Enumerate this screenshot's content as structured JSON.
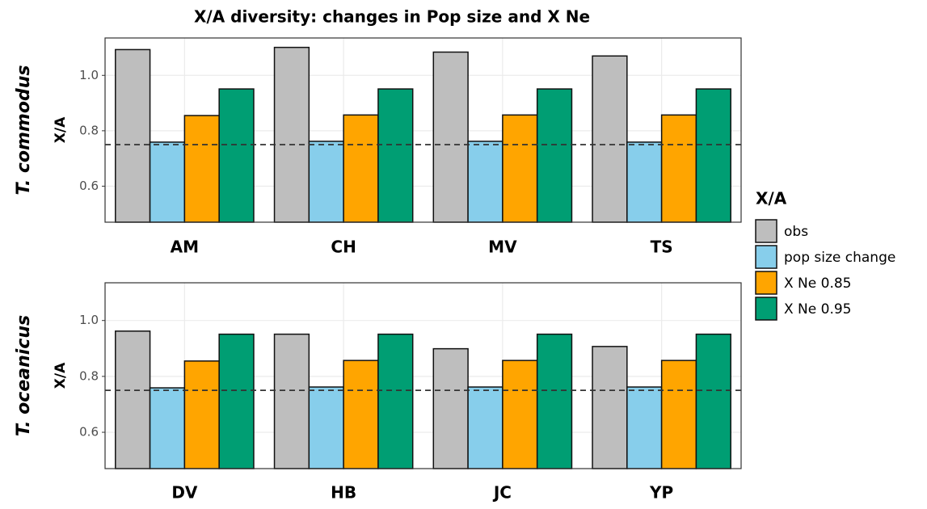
{
  "chart_data": {
    "type": "bar",
    "title": "X/A diversity: changes in Pop size and X Ne",
    "legend_title": "X/A",
    "ylabel": "X/A",
    "ylim": [
      0.47,
      1.135
    ],
    "yticks": [
      0.6,
      0.8,
      {
        "value": 1,
        "label": "1.0"
      }
    ],
    "hline": 0.75,
    "grid": true,
    "series": [
      {
        "name": "obs",
        "color": "#bebebe"
      },
      {
        "name": "pop size change",
        "color": "#87ceeb"
      },
      {
        "name": "X Ne 0.85",
        "color": "#ffa500"
      },
      {
        "name": "X Ne 0.95",
        "color": "#009e73"
      }
    ],
    "panels": [
      {
        "label": "T. commodus",
        "categories": [
          "AM",
          "CH",
          "MV",
          "TS"
        ],
        "values": [
          [
            1.093,
            1.101,
            1.084,
            1.07
          ],
          [
            0.759,
            0.762,
            0.762,
            0.759
          ],
          [
            0.855,
            0.857,
            0.857,
            0.857
          ],
          [
            0.951,
            0.951,
            0.951,
            0.951
          ]
        ]
      },
      {
        "label": "T. oceanicus",
        "categories": [
          "DV",
          "HB",
          "JC",
          "YP"
        ],
        "values": [
          [
            0.962,
            0.951,
            0.899,
            0.907
          ],
          [
            0.759,
            0.762,
            0.762,
            0.762
          ],
          [
            0.855,
            0.857,
            0.857,
            0.857
          ],
          [
            0.951,
            0.951,
            0.951,
            0.951
          ]
        ]
      }
    ]
  }
}
